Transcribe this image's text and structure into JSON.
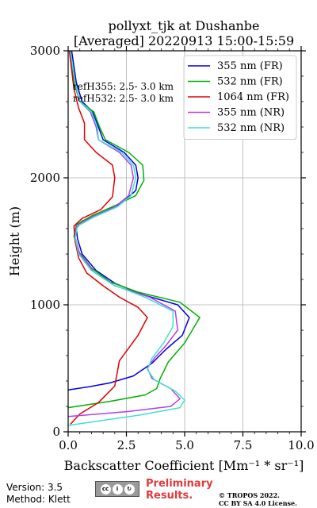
{
  "chart_data": {
    "type": "line",
    "title_line1": "pollyxt_tjk at Dushanbe",
    "title_line2": "[Averaged] 20220913 15:00-15:59",
    "xlabel": "Backscatter Coefficient [Mm⁻¹ * sr⁻¹]",
    "ylabel": "Height (m)",
    "xlim": [
      0,
      10
    ],
    "ylim": [
      0,
      3000
    ],
    "x_ticks": [
      0,
      2.5,
      5,
      7.5,
      10
    ],
    "x_tick_labels": [
      "0.0",
      "2.5",
      "5.0",
      "7.5",
      "10.0"
    ],
    "y_ticks": [
      0,
      1000,
      2000,
      3000
    ],
    "y_tick_labels": [
      "0",
      "1000",
      "2000",
      "3000"
    ],
    "grid": true,
    "legend_position": "top-right",
    "annotations": [
      "refH355:  2.5- 3.0 km",
      "refH532:  2.5- 3.0 km"
    ],
    "series": [
      {
        "name": "355 nm (FR)",
        "color": "#0000dd",
        "points": [
          [
            0,
            330
          ],
          [
            0.9,
            355
          ],
          [
            1.8,
            385
          ],
          [
            2.8,
            440
          ],
          [
            3.6,
            540
          ],
          [
            4.2,
            650
          ],
          [
            4.9,
            760
          ],
          [
            5.2,
            900
          ],
          [
            4.7,
            1000
          ],
          [
            3.2,
            1080
          ],
          [
            2.0,
            1170
          ],
          [
            1.2,
            1270
          ],
          [
            0.6,
            1400
          ],
          [
            0.4,
            1520
          ],
          [
            0.35,
            1600
          ],
          [
            0.6,
            1660
          ],
          [
            1.4,
            1720
          ],
          [
            2.3,
            1800
          ],
          [
            2.9,
            1900
          ],
          [
            3.0,
            2000
          ],
          [
            2.9,
            2100
          ],
          [
            2.4,
            2200
          ],
          [
            1.5,
            2300
          ],
          [
            1.3,
            2400
          ],
          [
            1.05,
            2520
          ],
          [
            0.6,
            2600
          ],
          [
            0.35,
            2750
          ],
          [
            0.15,
            3000
          ]
        ]
      },
      {
        "name": "532 nm (FR)",
        "color": "#00b000",
        "points": [
          [
            0,
            190
          ],
          [
            1.8,
            240
          ],
          [
            3.3,
            290
          ],
          [
            3.8,
            340
          ],
          [
            3.95,
            420
          ],
          [
            4.3,
            550
          ],
          [
            5.0,
            700
          ],
          [
            5.65,
            900
          ],
          [
            4.8,
            1020
          ],
          [
            3.0,
            1100
          ],
          [
            1.8,
            1180
          ],
          [
            1.0,
            1290
          ],
          [
            0.45,
            1420
          ],
          [
            0.25,
            1540
          ],
          [
            0.35,
            1630
          ],
          [
            1.0,
            1700
          ],
          [
            2.0,
            1780
          ],
          [
            2.9,
            1860
          ],
          [
            3.25,
            1980
          ],
          [
            3.2,
            2100
          ],
          [
            2.6,
            2200
          ],
          [
            1.6,
            2300
          ],
          [
            1.35,
            2400
          ],
          [
            1.1,
            2520
          ],
          [
            0.5,
            2600
          ],
          [
            0.25,
            2750
          ],
          [
            0.1,
            3000
          ]
        ]
      },
      {
        "name": "1064 nm (FR)",
        "color": "#dd0000",
        "points": [
          [
            0.1,
            60
          ],
          [
            0.5,
            140
          ],
          [
            1.3,
            230
          ],
          [
            2.0,
            360
          ],
          [
            2.2,
            560
          ],
          [
            3.0,
            760
          ],
          [
            3.4,
            900
          ],
          [
            3.0,
            980
          ],
          [
            2.2,
            1060
          ],
          [
            1.5,
            1150
          ],
          [
            0.8,
            1250
          ],
          [
            0.45,
            1370
          ],
          [
            0.3,
            1500
          ],
          [
            0.25,
            1620
          ],
          [
            0.6,
            1680
          ],
          [
            1.4,
            1750
          ],
          [
            1.9,
            1850
          ],
          [
            2.0,
            2000
          ],
          [
            1.9,
            2100
          ],
          [
            1.2,
            2200
          ],
          [
            0.7,
            2300
          ],
          [
            0.7,
            2430
          ],
          [
            0.45,
            2550
          ],
          [
            0.25,
            2700
          ],
          [
            0.05,
            3000
          ]
        ]
      },
      {
        "name": "355 nm (NR)",
        "color": "#b040e8",
        "points": [
          [
            0,
            120
          ],
          [
            2.6,
            160
          ],
          [
            4.4,
            200
          ],
          [
            4.8,
            260
          ],
          [
            4.4,
            340
          ],
          [
            3.6,
            420
          ],
          [
            3.4,
            500
          ],
          [
            3.7,
            580
          ],
          [
            4.2,
            680
          ],
          [
            4.7,
            800
          ],
          [
            4.6,
            950
          ],
          [
            3.5,
            1060
          ],
          [
            2.0,
            1150
          ],
          [
            1.1,
            1260
          ],
          [
            0.5,
            1400
          ],
          [
            0.3,
            1530
          ],
          [
            0.35,
            1620
          ],
          [
            1.0,
            1690
          ],
          [
            2.0,
            1770
          ],
          [
            2.6,
            1860
          ],
          [
            2.8,
            2000
          ],
          [
            2.7,
            2100
          ],
          [
            2.2,
            2200
          ],
          [
            1.3,
            2300
          ],
          [
            1.2,
            2400
          ],
          [
            0.95,
            2520
          ],
          [
            0.5,
            2600
          ],
          [
            0.3,
            2750
          ],
          [
            0.1,
            3000
          ]
        ]
      },
      {
        "name": "532 nm (NR)",
        "color": "#40e0d0",
        "points": [
          [
            0,
            50
          ],
          [
            3.0,
            130
          ],
          [
            4.8,
            190
          ],
          [
            5.0,
            250
          ],
          [
            4.6,
            320
          ],
          [
            3.7,
            410
          ],
          [
            3.4,
            490
          ],
          [
            3.6,
            580
          ],
          [
            4.1,
            700
          ],
          [
            4.5,
            830
          ],
          [
            4.5,
            950
          ],
          [
            3.3,
            1060
          ],
          [
            1.9,
            1160
          ],
          [
            1.0,
            1270
          ],
          [
            0.45,
            1400
          ],
          [
            0.3,
            1530
          ],
          [
            0.4,
            1620
          ],
          [
            1.1,
            1690
          ],
          [
            2.1,
            1770
          ],
          [
            2.7,
            1860
          ],
          [
            2.9,
            2000
          ],
          [
            2.8,
            2100
          ],
          [
            2.3,
            2200
          ],
          [
            1.3,
            2300
          ],
          [
            1.25,
            2400
          ],
          [
            1.0,
            2520
          ],
          [
            0.5,
            2600
          ],
          [
            0.3,
            2750
          ],
          [
            0.1,
            3000
          ]
        ]
      }
    ]
  },
  "footer": {
    "version": "Version: 3.5",
    "method": "Method: Klett",
    "cc_label": "BY SA",
    "preliminary_line1": "Preliminary",
    "preliminary_line2": "Results.",
    "copyright_line1": "© TROPOS 2022.",
    "copyright_line2": "CC BY SA 4.0 License."
  }
}
